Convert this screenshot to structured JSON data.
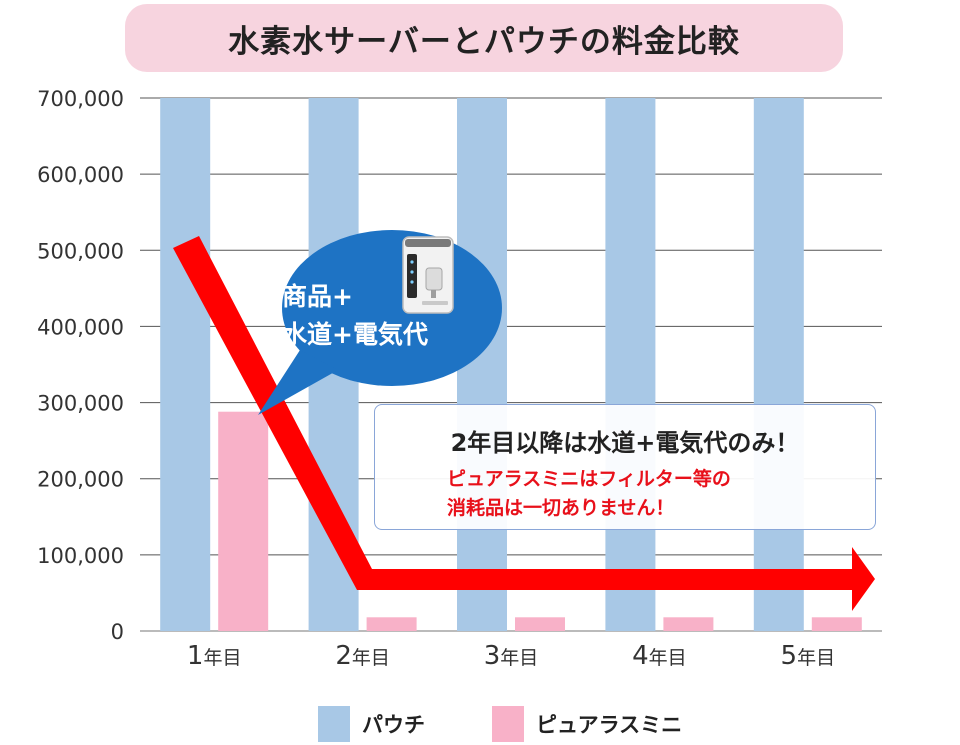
{
  "title": "水素水サーバーとパウチの料金比較",
  "callout": {
    "line1": "商品+",
    "line2": "水道+電気代"
  },
  "note": {
    "main": "2年目以降は水道+電気代のみ！",
    "sub1": "ピュアラスミニはフィルター等の",
    "sub2": "消耗品は一切ありません！"
  },
  "colors": {
    "pouch": "#a8c8e6",
    "pura": "#f8b1c8",
    "arrow": "#ff0000",
    "bubble": "#1e73c4",
    "title_bg": "#f7d4df"
  },
  "chart_data": {
    "type": "bar",
    "title": "水素水サーバーとパウチの料金比較",
    "categories": [
      "1年目",
      "2年目",
      "3年目",
      "4年目",
      "5年目"
    ],
    "category_labels": [
      {
        "num": "1",
        "unit": "年目"
      },
      {
        "num": "2",
        "unit": "年目"
      },
      {
        "num": "3",
        "unit": "年目"
      },
      {
        "num": "4",
        "unit": "年目"
      },
      {
        "num": "5",
        "unit": "年目"
      }
    ],
    "series": [
      {
        "name": "パウチ",
        "values": [
          700000,
          700000,
          700000,
          700000,
          700000
        ]
      },
      {
        "name": "ピュアラスミニ",
        "values": [
          288000,
          18000,
          18000,
          18000,
          18000
        ]
      }
    ],
    "yticks": [
      "0",
      "100,000",
      "200,000",
      "300,000",
      "400,000",
      "500,000",
      "600,000",
      "700,000"
    ],
    "ylim": [
      0,
      700000
    ],
    "grid": true,
    "legend": "bottom"
  }
}
